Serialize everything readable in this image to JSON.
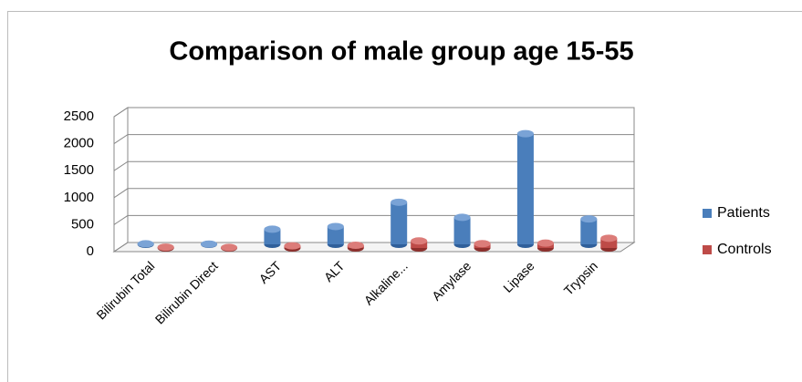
{
  "chart_data": {
    "type": "bar3d",
    "title": "Comparison of male group age 15-55",
    "categories": [
      "Bilirubin Total",
      "Bilirubin Direct",
      "AST",
      "ALT",
      "Alkaline...",
      "Amylase",
      "Lipase",
      "Trypsin"
    ],
    "series": [
      {
        "name": "Patients",
        "color": "#4a7ebb",
        "values": [
          10,
          5,
          280,
          330,
          780,
          500,
          2050,
          470
        ]
      },
      {
        "name": "Controls",
        "color": "#be4b48",
        "values": [
          15,
          10,
          40,
          50,
          130,
          80,
          90,
          180
        ]
      }
    ],
    "ylim": [
      0,
      2500
    ],
    "yticks": [
      0,
      500,
      1000,
      1500,
      2000,
      2500
    ],
    "grid": true,
    "legend": "right"
  }
}
